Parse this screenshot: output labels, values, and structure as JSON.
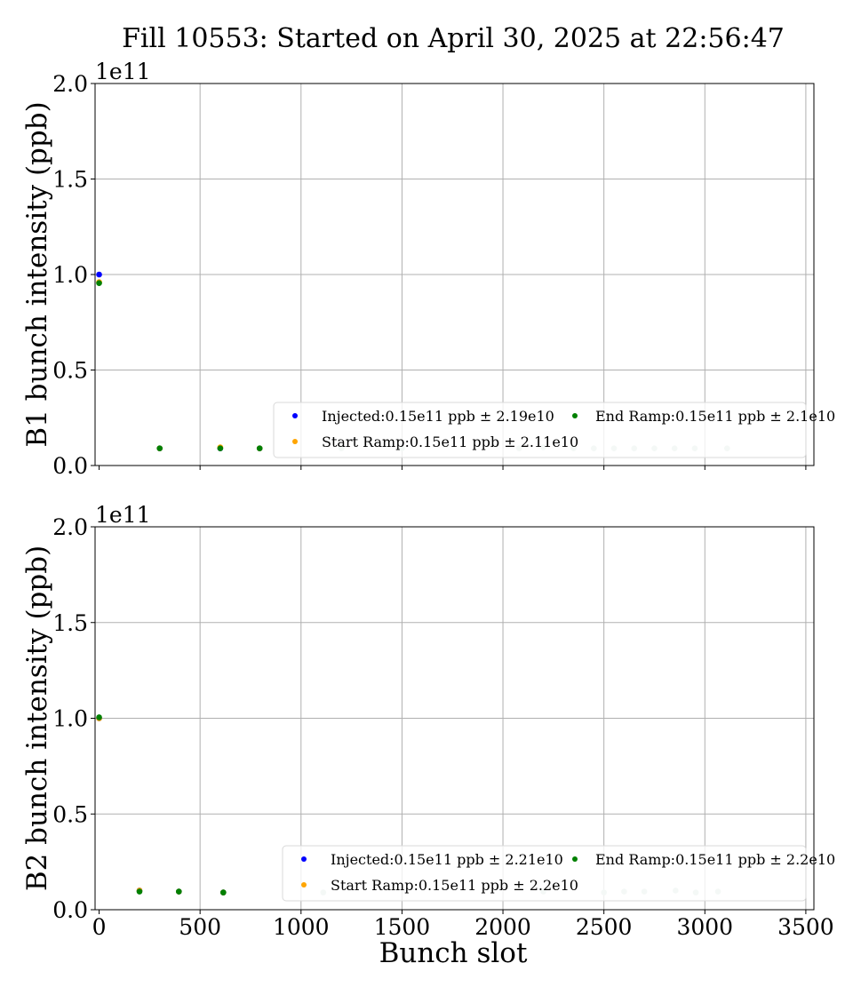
{
  "figure": {
    "title": "Fill 10553: Started on April 30, 2025 at 22:56:47",
    "xlabel": "Bunch slot"
  },
  "chart_data": [
    {
      "type": "scatter",
      "ylabel": "B1 bunch intensity (ppb)",
      "offset_label": "1e11",
      "xlim": [
        -20,
        3540
      ],
      "ylim": [
        0,
        2.0
      ],
      "xticks": [
        0,
        500,
        1000,
        1500,
        2000,
        2500,
        3000,
        3500
      ],
      "yticks": [
        0.0,
        0.5,
        1.0,
        1.5,
        2.0
      ],
      "ytick_labels": [
        "0.0",
        "0.5",
        "1.0",
        "1.5",
        "2.0"
      ],
      "grid": true,
      "legend_position": "lower-right",
      "series": [
        {
          "name": "Injected:0.15e11 ppb ± 2.19e10",
          "color": "#0000ff",
          "x": [
            0,
            300,
            600,
            795
          ],
          "y": [
            1.0,
            0.09,
            0.09,
            0.09
          ]
        },
        {
          "name": "Start Ramp:0.15e11 ppb ± 2.11e10",
          "color": "#ffa500",
          "x": [
            0,
            300,
            600,
            795
          ],
          "y": [
            0.96,
            0.09,
            0.095,
            0.09
          ]
        },
        {
          "name": "End Ramp:0.15e11 ppb ± 2.1e10",
          "color": "#008000",
          "x": [
            0,
            300,
            600,
            795
          ],
          "y": [
            0.955,
            0.09,
            0.09,
            0.09
          ]
        }
      ],
      "faded_points": {
        "color": "#c8ddd2",
        "x": [
          1200,
          1500,
          2080,
          2200,
          2350,
          2450,
          2550,
          2650,
          2750,
          2850,
          2950,
          3110
        ],
        "y": [
          0.09,
          0.09,
          0.09,
          0.095,
          0.09,
          0.09,
          0.09,
          0.09,
          0.09,
          0.09,
          0.09,
          0.09
        ]
      }
    },
    {
      "type": "scatter",
      "ylabel": "B2 bunch intensity (ppb)",
      "offset_label": "1e11",
      "xlim": [
        -20,
        3540
      ],
      "ylim": [
        0,
        2.0
      ],
      "xticks": [
        0,
        500,
        1000,
        1500,
        2000,
        2500,
        3000,
        3500
      ],
      "xtick_labels": [
        "0",
        "500",
        "1000",
        "1500",
        "2000",
        "2500",
        "3000",
        "3500"
      ],
      "yticks": [
        0.0,
        0.5,
        1.0,
        1.5,
        2.0
      ],
      "ytick_labels": [
        "0.0",
        "0.5",
        "1.0",
        "1.5",
        "2.0"
      ],
      "grid": true,
      "legend_position": "lower-right",
      "series": [
        {
          "name": "Injected:0.15e11 ppb ± 2.21e10",
          "color": "#0000ff",
          "x": [
            0,
            200,
            395,
            615
          ],
          "y": [
            1.0,
            0.1,
            0.095,
            0.09
          ]
        },
        {
          "name": "Start Ramp:0.15e11 ppb ± 2.2e10",
          "color": "#ffa500",
          "x": [
            0,
            200,
            395,
            615
          ],
          "y": [
            1.0,
            0.1,
            0.095,
            0.09
          ]
        },
        {
          "name": "End Ramp:0.15e11 ppb ± 2.2e10",
          "color": "#008000",
          "x": [
            0,
            200,
            395,
            615
          ],
          "y": [
            1.005,
            0.095,
            0.095,
            0.09
          ]
        }
      ],
      "faded_points": {
        "color": "#c8ddd2",
        "x": [
          1110,
          2200,
          2500,
          2600,
          2700,
          2855,
          2955,
          3065
        ],
        "y": [
          0.09,
          0.095,
          0.09,
          0.095,
          0.095,
          0.1,
          0.09,
          0.095
        ]
      }
    }
  ]
}
